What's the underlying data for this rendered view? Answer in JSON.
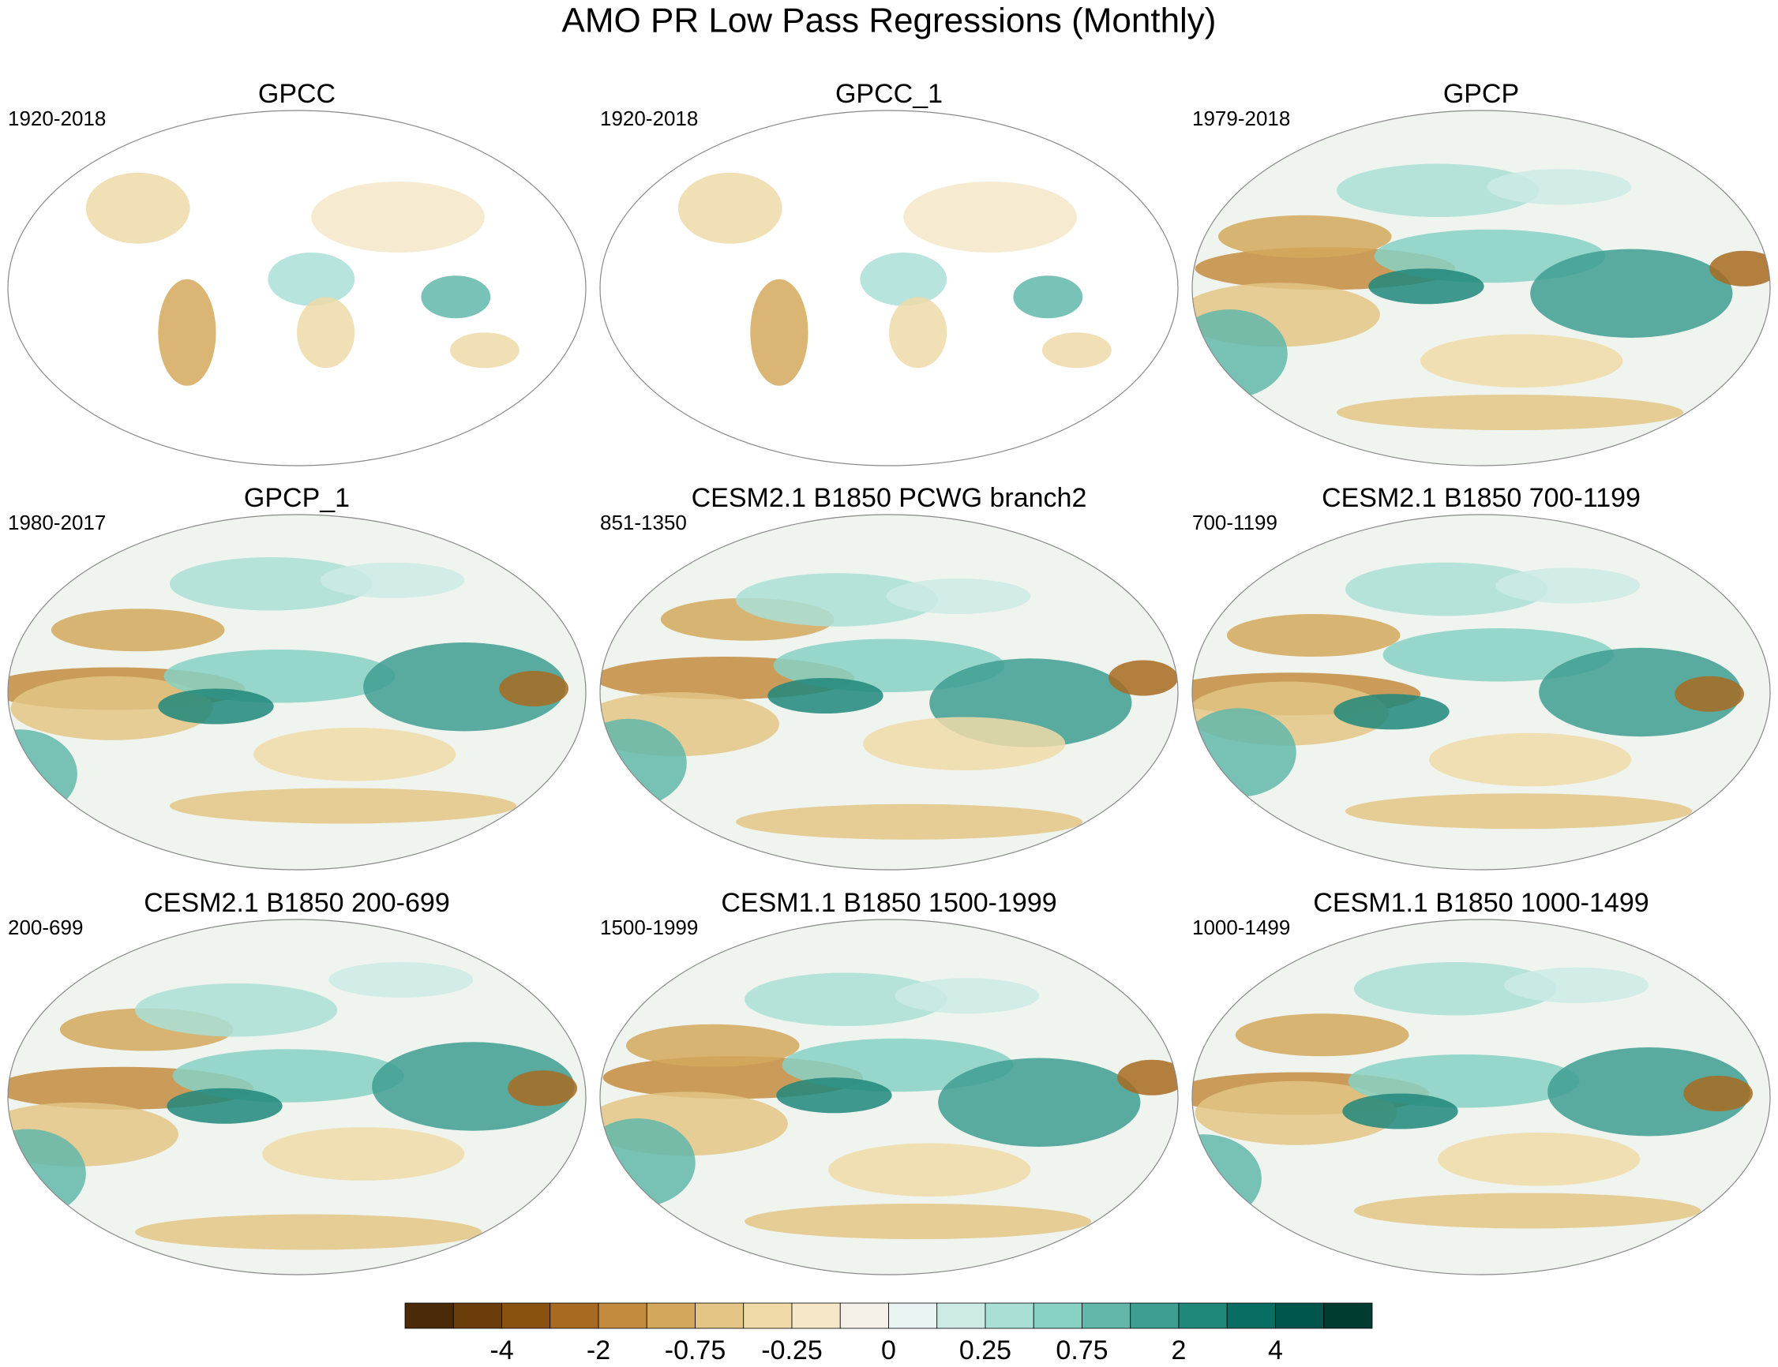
{
  "title": "AMO PR Low Pass Regressions (Monthly)",
  "panels": [
    {
      "title": "GPCC",
      "period": "1920-2018"
    },
    {
      "title": "GPCC_1",
      "period": "1920-2018"
    },
    {
      "title": "GPCP",
      "period": "1979-2018"
    },
    {
      "title": "GPCP_1",
      "period": "1980-2017"
    },
    {
      "title": "CESM2.1 B1850 PCWG branch2",
      "period": "851-1350"
    },
    {
      "title": "CESM2.1 B1850 700-1199",
      "period": "700-1199"
    },
    {
      "title": "CESM2.1 B1850 200-699",
      "period": "200-699"
    },
    {
      "title": "CESM1.1 B1850 1500-1999",
      "period": "1500-1999"
    },
    {
      "title": "CESM1.1 B1850 1000-1499",
      "period": "1000-1499"
    }
  ],
  "colorbar": {
    "colors": [
      "#4a2a08",
      "#6b3d0a",
      "#8a5210",
      "#a86a20",
      "#c38b3e",
      "#d4a85c",
      "#e3c585",
      "#efdaa8",
      "#f5e8c8",
      "#f5f1e8",
      "#e8f4f2",
      "#cdeae5",
      "#aadfd6",
      "#87d1c4",
      "#62b7aa",
      "#3e9e92",
      "#20877b",
      "#086d62",
      "#00564b",
      "#003c30"
    ],
    "ticks": [
      -4,
      -2,
      -0.75,
      -0.25,
      0,
      0.25,
      0.75,
      2,
      4
    ]
  }
}
